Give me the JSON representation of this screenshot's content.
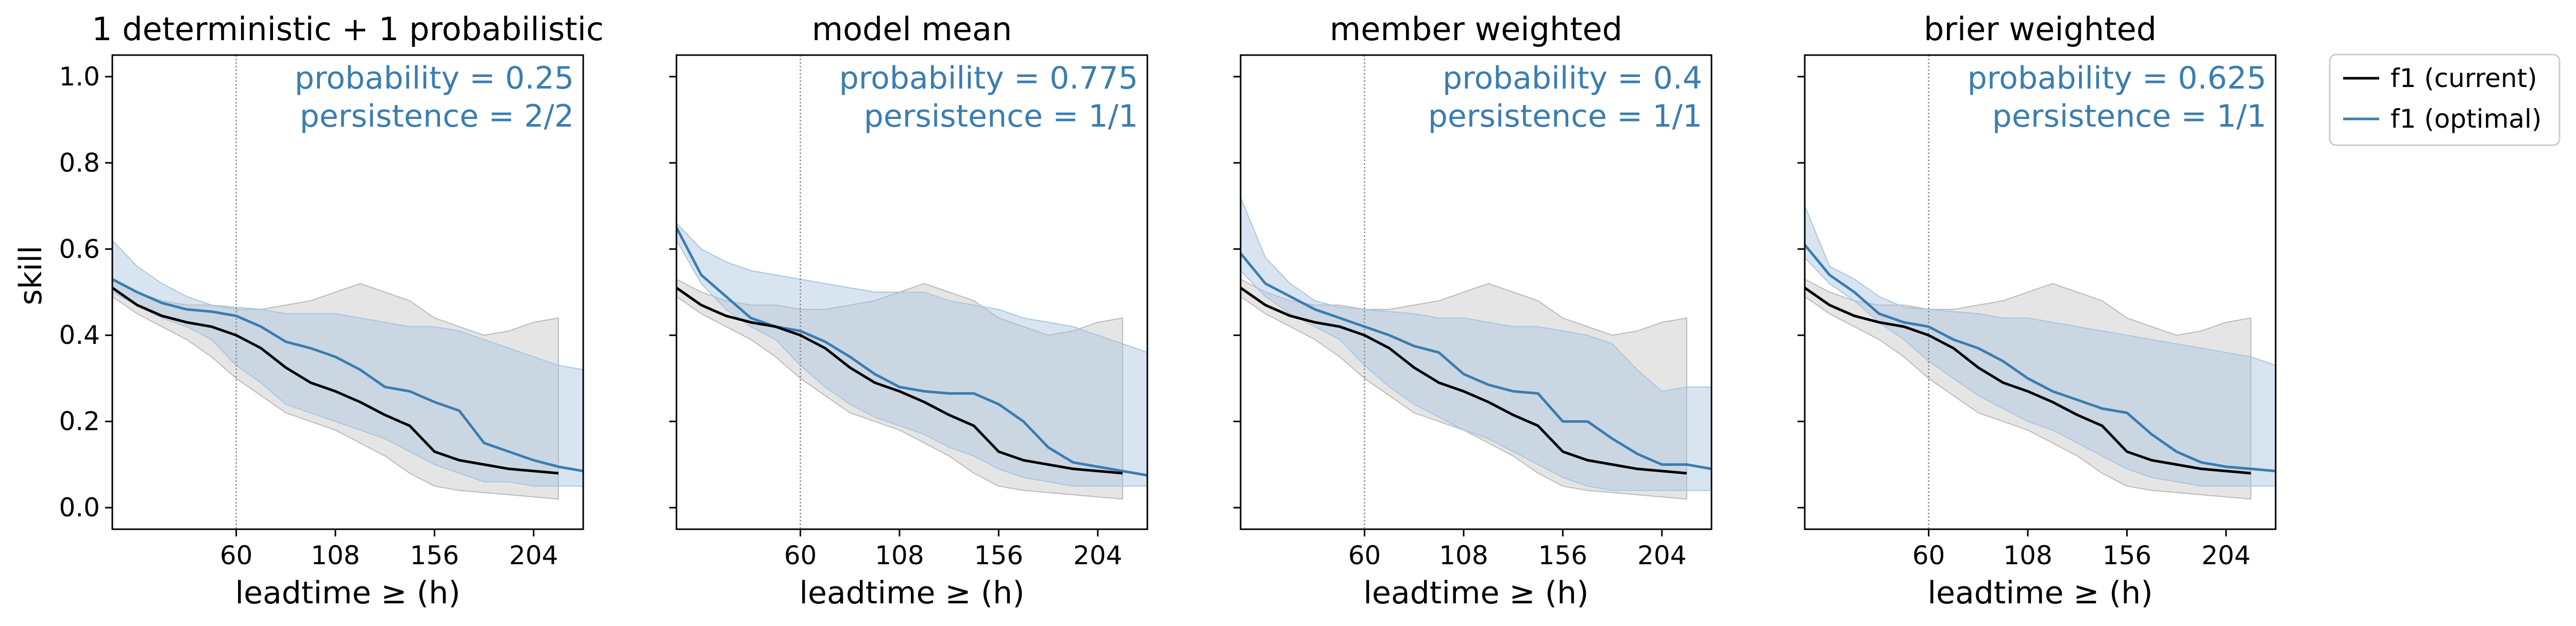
{
  "colors": {
    "current": "#000000",
    "optimal": "#3a7db0",
    "band_current": "#bbbbbb",
    "band_optimal": "#a9c6df",
    "vline": "#888888",
    "annotation": "#3a7db0"
  },
  "legend": {
    "placement": "right-outside",
    "items": [
      {
        "label": "f1 (current)",
        "color": "#000000"
      },
      {
        "label": "f1 (optimal)",
        "color": "#3a7db0"
      }
    ]
  },
  "chart_data": [
    {
      "type": "line",
      "title": "1 deterministic + 1 probabilistic",
      "xlabel": "leadtime ≥ (h)",
      "ylabel": "skill",
      "xlim": [
        0,
        228
      ],
      "ylim": [
        -0.05,
        1.05
      ],
      "xticks": [
        60,
        108,
        156,
        204
      ],
      "yticks": [
        0.0,
        0.2,
        0.4,
        0.6,
        0.8,
        1.0
      ],
      "ytick_labels": [
        "0.0",
        "0.2",
        "0.4",
        "0.6",
        "0.8",
        "1.0"
      ],
      "vline_x": 60,
      "annotations": [
        "probability = 0.25",
        "persistence = 2/2"
      ],
      "series": [
        {
          "name": "f1 (current)",
          "color": "#000000",
          "x": [
            0,
            12,
            24,
            36,
            48,
            60,
            72,
            84,
            96,
            108,
            120,
            132,
            144,
            156,
            168,
            180,
            192,
            204,
            216
          ],
          "y": [
            0.51,
            0.47,
            0.445,
            0.43,
            0.42,
            0.4,
            0.37,
            0.325,
            0.29,
            0.27,
            0.245,
            0.215,
            0.19,
            0.13,
            0.11,
            0.1,
            0.09,
            0.085,
            0.08
          ],
          "lower": [
            0.49,
            0.45,
            0.42,
            0.39,
            0.35,
            0.3,
            0.26,
            0.22,
            0.2,
            0.18,
            0.15,
            0.12,
            0.08,
            0.05,
            0.04,
            0.035,
            0.03,
            0.025,
            0.02
          ],
          "upper": [
            0.53,
            0.5,
            0.48,
            0.47,
            0.47,
            0.46,
            0.46,
            0.47,
            0.48,
            0.5,
            0.52,
            0.5,
            0.48,
            0.44,
            0.42,
            0.4,
            0.41,
            0.43,
            0.44
          ]
        },
        {
          "name": "f1 (optimal)",
          "color": "#3a7db0",
          "x": [
            0,
            12,
            24,
            36,
            48,
            60,
            72,
            84,
            96,
            108,
            120,
            132,
            144,
            156,
            168,
            180,
            192,
            204,
            216,
            228
          ],
          "y": [
            0.53,
            0.5,
            0.475,
            0.46,
            0.455,
            0.445,
            0.42,
            0.385,
            0.37,
            0.35,
            0.32,
            0.28,
            0.27,
            0.245,
            0.225,
            0.15,
            0.13,
            0.11,
            0.095,
            0.085
          ],
          "lower": [
            0.5,
            0.47,
            0.44,
            0.42,
            0.39,
            0.33,
            0.29,
            0.24,
            0.22,
            0.2,
            0.18,
            0.16,
            0.13,
            0.1,
            0.08,
            0.06,
            0.06,
            0.05,
            0.05,
            0.05
          ],
          "upper": [
            0.62,
            0.56,
            0.52,
            0.49,
            0.47,
            0.465,
            0.46,
            0.45,
            0.45,
            0.45,
            0.44,
            0.43,
            0.42,
            0.42,
            0.41,
            0.39,
            0.37,
            0.35,
            0.33,
            0.32
          ]
        }
      ]
    },
    {
      "type": "line",
      "title": "model mean",
      "xlabel": "leadtime ≥ (h)",
      "ylabel": "",
      "xlim": [
        0,
        228
      ],
      "ylim": [
        -0.05,
        1.05
      ],
      "xticks": [
        60,
        108,
        156,
        204
      ],
      "yticks": [
        0.0,
        0.2,
        0.4,
        0.6,
        0.8,
        1.0
      ],
      "ytick_labels": [
        "",
        "",
        "",
        "",
        "",
        ""
      ],
      "vline_x": 60,
      "annotations": [
        "probability = 0.775",
        "persistence = 1/1"
      ],
      "series": [
        {
          "name": "f1 (current)",
          "color": "#000000",
          "x": [
            0,
            12,
            24,
            36,
            48,
            60,
            72,
            84,
            96,
            108,
            120,
            132,
            144,
            156,
            168,
            180,
            192,
            204,
            216
          ],
          "y": [
            0.51,
            0.47,
            0.445,
            0.43,
            0.42,
            0.4,
            0.37,
            0.325,
            0.29,
            0.27,
            0.245,
            0.215,
            0.19,
            0.13,
            0.11,
            0.1,
            0.09,
            0.085,
            0.08
          ],
          "lower": [
            0.49,
            0.45,
            0.42,
            0.39,
            0.35,
            0.3,
            0.26,
            0.22,
            0.2,
            0.18,
            0.15,
            0.12,
            0.08,
            0.05,
            0.04,
            0.035,
            0.03,
            0.025,
            0.02
          ],
          "upper": [
            0.53,
            0.5,
            0.48,
            0.47,
            0.47,
            0.46,
            0.46,
            0.47,
            0.48,
            0.5,
            0.52,
            0.5,
            0.48,
            0.44,
            0.42,
            0.4,
            0.41,
            0.43,
            0.44
          ]
        },
        {
          "name": "f1 (optimal)",
          "color": "#3a7db0",
          "x": [
            0,
            12,
            24,
            36,
            48,
            60,
            72,
            84,
            96,
            108,
            120,
            132,
            144,
            156,
            168,
            180,
            192,
            204,
            216,
            228
          ],
          "y": [
            0.65,
            0.54,
            0.49,
            0.44,
            0.42,
            0.41,
            0.385,
            0.35,
            0.31,
            0.28,
            0.27,
            0.265,
            0.265,
            0.24,
            0.2,
            0.14,
            0.105,
            0.095,
            0.085,
            0.075
          ],
          "lower": [
            0.62,
            0.52,
            0.46,
            0.42,
            0.39,
            0.33,
            0.28,
            0.24,
            0.21,
            0.19,
            0.17,
            0.14,
            0.12,
            0.09,
            0.07,
            0.06,
            0.05,
            0.05,
            0.05,
            0.05
          ],
          "upper": [
            0.66,
            0.6,
            0.57,
            0.55,
            0.54,
            0.53,
            0.52,
            0.51,
            0.5,
            0.5,
            0.5,
            0.48,
            0.47,
            0.46,
            0.44,
            0.43,
            0.42,
            0.4,
            0.38,
            0.36
          ]
        }
      ]
    },
    {
      "type": "line",
      "title": "member weighted",
      "xlabel": "leadtime ≥ (h)",
      "ylabel": "",
      "xlim": [
        0,
        228
      ],
      "ylim": [
        -0.05,
        1.05
      ],
      "xticks": [
        60,
        108,
        156,
        204
      ],
      "yticks": [
        0.0,
        0.2,
        0.4,
        0.6,
        0.8,
        1.0
      ],
      "ytick_labels": [
        "",
        "",
        "",
        "",
        "",
        ""
      ],
      "vline_x": 60,
      "annotations": [
        "probability = 0.4",
        "persistence = 1/1"
      ],
      "series": [
        {
          "name": "f1 (current)",
          "color": "#000000",
          "x": [
            0,
            12,
            24,
            36,
            48,
            60,
            72,
            84,
            96,
            108,
            120,
            132,
            144,
            156,
            168,
            180,
            192,
            204,
            216
          ],
          "y": [
            0.51,
            0.47,
            0.445,
            0.43,
            0.42,
            0.4,
            0.37,
            0.325,
            0.29,
            0.27,
            0.245,
            0.215,
            0.19,
            0.13,
            0.11,
            0.1,
            0.09,
            0.085,
            0.08
          ],
          "lower": [
            0.49,
            0.45,
            0.42,
            0.39,
            0.35,
            0.3,
            0.26,
            0.22,
            0.2,
            0.18,
            0.15,
            0.12,
            0.08,
            0.05,
            0.04,
            0.035,
            0.03,
            0.025,
            0.02
          ],
          "upper": [
            0.53,
            0.5,
            0.48,
            0.47,
            0.47,
            0.46,
            0.46,
            0.47,
            0.48,
            0.5,
            0.52,
            0.5,
            0.48,
            0.44,
            0.42,
            0.4,
            0.41,
            0.43,
            0.44
          ]
        },
        {
          "name": "f1 (optimal)",
          "color": "#3a7db0",
          "x": [
            0,
            12,
            24,
            36,
            48,
            60,
            72,
            84,
            96,
            108,
            120,
            132,
            144,
            156,
            168,
            180,
            192,
            204,
            216,
            228
          ],
          "y": [
            0.59,
            0.52,
            0.49,
            0.46,
            0.44,
            0.42,
            0.4,
            0.375,
            0.36,
            0.31,
            0.285,
            0.27,
            0.265,
            0.2,
            0.2,
            0.16,
            0.125,
            0.1,
            0.1,
            0.09
          ],
          "lower": [
            0.55,
            0.49,
            0.45,
            0.42,
            0.39,
            0.33,
            0.28,
            0.24,
            0.21,
            0.18,
            0.16,
            0.13,
            0.1,
            0.07,
            0.05,
            0.04,
            0.04,
            0.04,
            0.04,
            0.04
          ],
          "upper": [
            0.72,
            0.58,
            0.52,
            0.48,
            0.465,
            0.46,
            0.455,
            0.45,
            0.44,
            0.44,
            0.43,
            0.42,
            0.42,
            0.41,
            0.4,
            0.38,
            0.32,
            0.27,
            0.28,
            0.28
          ]
        }
      ]
    },
    {
      "type": "line",
      "title": "brier weighted",
      "xlabel": "leadtime ≥ (h)",
      "ylabel": "",
      "xlim": [
        0,
        228
      ],
      "ylim": [
        -0.05,
        1.05
      ],
      "xticks": [
        60,
        108,
        156,
        204
      ],
      "yticks": [
        0.0,
        0.2,
        0.4,
        0.6,
        0.8,
        1.0
      ],
      "ytick_labels": [
        "",
        "",
        "",
        "",
        "",
        ""
      ],
      "vline_x": 60,
      "annotations": [
        "probability = 0.625",
        "persistence = 1/1"
      ],
      "series": [
        {
          "name": "f1 (current)",
          "color": "#000000",
          "x": [
            0,
            12,
            24,
            36,
            48,
            60,
            72,
            84,
            96,
            108,
            120,
            132,
            144,
            156,
            168,
            180,
            192,
            204,
            216
          ],
          "y": [
            0.51,
            0.47,
            0.445,
            0.43,
            0.42,
            0.4,
            0.37,
            0.325,
            0.29,
            0.27,
            0.245,
            0.215,
            0.19,
            0.13,
            0.11,
            0.1,
            0.09,
            0.085,
            0.08
          ],
          "lower": [
            0.49,
            0.45,
            0.42,
            0.39,
            0.35,
            0.3,
            0.26,
            0.22,
            0.2,
            0.18,
            0.15,
            0.12,
            0.08,
            0.05,
            0.04,
            0.035,
            0.03,
            0.025,
            0.02
          ],
          "upper": [
            0.53,
            0.5,
            0.48,
            0.47,
            0.47,
            0.46,
            0.46,
            0.47,
            0.48,
            0.5,
            0.52,
            0.5,
            0.48,
            0.44,
            0.42,
            0.4,
            0.41,
            0.43,
            0.44
          ]
        },
        {
          "name": "f1 (optimal)",
          "color": "#3a7db0",
          "x": [
            0,
            12,
            24,
            36,
            48,
            60,
            72,
            84,
            96,
            108,
            120,
            132,
            144,
            156,
            168,
            180,
            192,
            204,
            216,
            228
          ],
          "y": [
            0.61,
            0.54,
            0.5,
            0.45,
            0.43,
            0.42,
            0.39,
            0.37,
            0.34,
            0.3,
            0.27,
            0.25,
            0.23,
            0.22,
            0.17,
            0.13,
            0.105,
            0.095,
            0.09,
            0.085
          ],
          "lower": [
            0.58,
            0.52,
            0.48,
            0.43,
            0.39,
            0.34,
            0.3,
            0.26,
            0.23,
            0.2,
            0.18,
            0.15,
            0.12,
            0.09,
            0.07,
            0.06,
            0.05,
            0.05,
            0.05,
            0.05
          ],
          "upper": [
            0.7,
            0.56,
            0.53,
            0.49,
            0.465,
            0.46,
            0.455,
            0.45,
            0.44,
            0.44,
            0.43,
            0.42,
            0.41,
            0.4,
            0.39,
            0.38,
            0.37,
            0.36,
            0.35,
            0.33
          ]
        }
      ]
    }
  ]
}
